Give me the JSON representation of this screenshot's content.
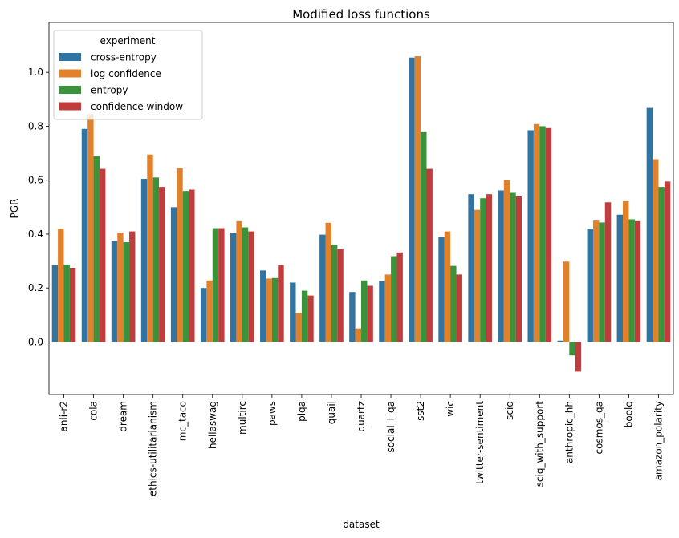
{
  "chart_data": {
    "type": "bar",
    "title": "Modified loss functions",
    "xlabel": "dataset",
    "ylabel": "PGR",
    "ylim": [
      -0.195,
      1.185
    ],
    "yticks": [
      0.0,
      0.2,
      0.4,
      0.6,
      0.8,
      1.0
    ],
    "ytick_labels": [
      "0.0",
      "0.2",
      "0.4",
      "0.6",
      "0.8",
      "1.0"
    ],
    "grid": false,
    "legend": {
      "title": "experiment",
      "placement": "top-left"
    },
    "categories": [
      "anli-r2",
      "cola",
      "dream",
      "ethics-utilitarianism",
      "mc_taco",
      "hellaswag",
      "multirc",
      "paws",
      "piqa",
      "quail",
      "quartz",
      "social_i_qa",
      "sst2",
      "wic",
      "twitter-sentiment",
      "sciq",
      "sciq_with_support",
      "anthropic_hh",
      "cosmos_qa",
      "boolq",
      "amazon_polarity"
    ],
    "series": [
      {
        "name": "cross-entropy",
        "color": "#3274a1",
        "values": [
          0.285,
          0.79,
          0.375,
          0.605,
          0.5,
          0.2,
          0.405,
          0.265,
          0.22,
          0.398,
          0.185,
          0.225,
          1.055,
          0.39,
          0.548,
          0.562,
          0.785,
          0.005,
          0.42,
          0.472,
          0.868
        ]
      },
      {
        "name": "log confidence",
        "color": "#e1812c",
        "values": [
          0.42,
          0.845,
          0.405,
          0.695,
          0.645,
          0.228,
          0.448,
          0.235,
          0.108,
          0.442,
          0.05,
          0.25,
          1.06,
          0.41,
          0.49,
          0.6,
          0.808,
          0.298,
          0.45,
          0.522,
          0.678
        ]
      },
      {
        "name": "entropy",
        "color": "#3a923a",
        "values": [
          0.287,
          0.69,
          0.37,
          0.61,
          0.56,
          0.422,
          0.425,
          0.237,
          0.19,
          0.36,
          0.228,
          0.318,
          0.778,
          0.282,
          0.533,
          0.553,
          0.8,
          -0.05,
          0.443,
          0.455,
          0.575
        ]
      },
      {
        "name": "confidence window",
        "color": "#c03d3e",
        "values": [
          0.275,
          0.642,
          0.41,
          0.575,
          0.565,
          0.422,
          0.41,
          0.285,
          0.172,
          0.345,
          0.208,
          0.332,
          0.642,
          0.25,
          0.548,
          0.54,
          0.793,
          -0.11,
          0.518,
          0.448,
          0.595
        ]
      }
    ]
  }
}
